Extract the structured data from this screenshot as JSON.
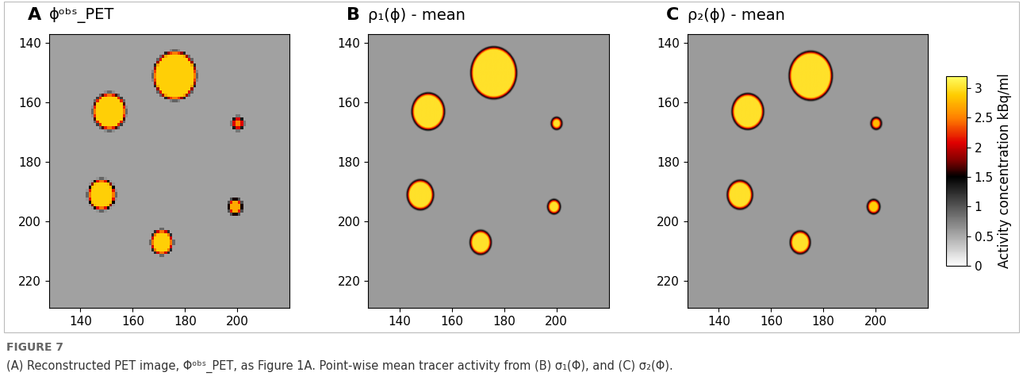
{
  "figure_caption": {
    "label": "FIGURE 7",
    "text": "(A) Reconstructed PET image, Φᵒᵇˢ_PET, as Figure 1A. Point-wise mean tracer activity from (B) σ₁(Φ), and (C) σ₂(Φ)."
  },
  "colorbar": {
    "label": "Activity concentration kBq/ml",
    "range": [
      0,
      3.2
    ],
    "ticks": [
      0,
      0.5,
      1,
      1.5,
      2,
      2.5,
      3
    ]
  },
  "chart_data": [
    {
      "type": "heatmap",
      "panel": "A",
      "title": "ϕᵒᵇˢ_PET",
      "xlim": [
        128,
        220
      ],
      "ylim": [
        229,
        137
      ],
      "xticks": [
        140,
        160,
        180,
        200
      ],
      "yticks": [
        140,
        160,
        180,
        200,
        220
      ],
      "background": 0.55,
      "spheres": [
        {
          "x": 176,
          "y": 151,
          "r": 8,
          "value": 2.9
        },
        {
          "x": 151,
          "y": 163,
          "r": 6,
          "value": 2.9
        },
        {
          "x": 148,
          "y": 191,
          "r": 5,
          "value": 2.9
        },
        {
          "x": 171,
          "y": 207,
          "r": 4,
          "value": 2.9
        },
        {
          "x": 200,
          "y": 167,
          "r": 2,
          "value": 2.5
        },
        {
          "x": 199,
          "y": 195,
          "r": 2.5,
          "value": 2.7
        }
      ]
    },
    {
      "type": "heatmap",
      "panel": "B",
      "title": "ρ₁(ϕ) - mean",
      "xlim": [
        128,
        220
      ],
      "ylim": [
        229,
        137
      ],
      "xticks": [
        140,
        160,
        180,
        200
      ],
      "yticks": [
        140,
        160,
        180,
        200,
        220
      ],
      "background": 0.6,
      "spheres": [
        {
          "x": 176,
          "y": 150,
          "r": 8.5,
          "value": 3.0
        },
        {
          "x": 151,
          "y": 163,
          "r": 6,
          "value": 3.0
        },
        {
          "x": 148,
          "y": 191,
          "r": 4.8,
          "value": 3.0
        },
        {
          "x": 171,
          "y": 207,
          "r": 3.8,
          "value": 3.0
        },
        {
          "x": 200,
          "y": 167,
          "r": 1.8,
          "value": 3.0
        },
        {
          "x": 199,
          "y": 195,
          "r": 2.2,
          "value": 3.0
        }
      ]
    },
    {
      "type": "heatmap",
      "panel": "C",
      "title": "ρ₂(ϕ) - mean",
      "xlim": [
        128,
        220
      ],
      "ylim": [
        229,
        137
      ],
      "xticks": [
        140,
        160,
        180,
        200
      ],
      "yticks": [
        140,
        160,
        180,
        200,
        220
      ],
      "background": 0.6,
      "spheres": [
        {
          "x": 175,
          "y": 151,
          "r": 8,
          "value": 3.0
        },
        {
          "x": 151,
          "y": 163,
          "r": 5.8,
          "value": 3.0
        },
        {
          "x": 148,
          "y": 191,
          "r": 4.6,
          "value": 3.0
        },
        {
          "x": 171,
          "y": 207,
          "r": 3.6,
          "value": 3.0
        },
        {
          "x": 200,
          "y": 167,
          "r": 1.8,
          "value": 2.8
        },
        {
          "x": 199,
          "y": 195,
          "r": 2.2,
          "value": 2.9
        }
      ]
    }
  ]
}
